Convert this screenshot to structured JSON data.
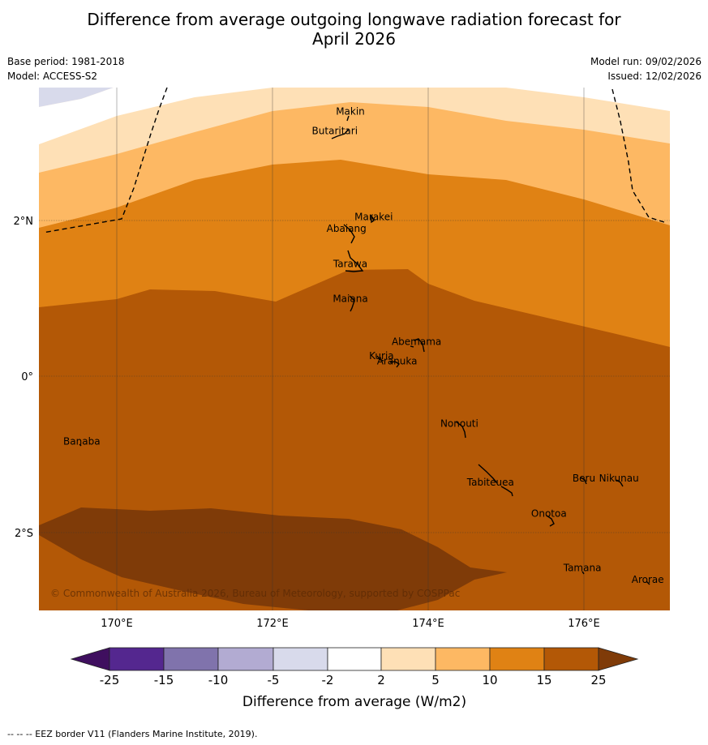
{
  "header": {
    "title_line1": "Difference from average outgoing longwave radiation forecast for",
    "title_line2": "April 2026",
    "base_period": "Base period: 1981-2018",
    "model": "Model: ACCESS-S2",
    "model_run": "Model run: 09/02/2026",
    "issued": "Issued: 12/02/2026"
  },
  "map": {
    "lon_ticks": [
      "170°E",
      "172°E",
      "174°E",
      "176°E"
    ],
    "lat_ticks": [
      "2°N",
      "0°",
      "2°S"
    ],
    "copyright": "© Commonwealth of Australia 2026, Bureau of Meteorology, supported by COSPPac",
    "islands": [
      {
        "name": "Makin",
        "lon": 173.0,
        "lat": 3.35
      },
      {
        "name": "Butaritari",
        "lon": 172.8,
        "lat": 3.1
      },
      {
        "name": "Marakei",
        "lon": 173.3,
        "lat": 2.0
      },
      {
        "name": "Abaiang",
        "lon": 172.95,
        "lat": 1.85
      },
      {
        "name": "Tarawa",
        "lon": 173.0,
        "lat": 1.4
      },
      {
        "name": "Maiana",
        "lon": 173.0,
        "lat": 0.95
      },
      {
        "name": "Abemama",
        "lon": 173.85,
        "lat": 0.4
      },
      {
        "name": "Kuria",
        "lon": 173.4,
        "lat": 0.22
      },
      {
        "name": "Aranuka",
        "lon": 173.6,
        "lat": 0.15
      },
      {
        "name": "Nonouti",
        "lon": 174.4,
        "lat": -0.65
      },
      {
        "name": "Banaba",
        "lon": 169.55,
        "lat": -0.88
      },
      {
        "name": "Tabiteuea",
        "lon": 174.8,
        "lat": -1.4
      },
      {
        "name": "Beru",
        "lon": 176.0,
        "lat": -1.35
      },
      {
        "name": "Nikunau",
        "lon": 176.45,
        "lat": -1.35
      },
      {
        "name": "Onotoa",
        "lon": 175.55,
        "lat": -1.8
      },
      {
        "name": "Tamana",
        "lon": 175.98,
        "lat": -2.5
      },
      {
        "name": "Arorae",
        "lon": 176.82,
        "lat": -2.65
      }
    ]
  },
  "legend": {
    "title": "Difference from average (W/m2)",
    "tick_labels": [
      "-25",
      "-15",
      "-10",
      "-5",
      "-2",
      "2",
      "5",
      "10",
      "15",
      "25"
    ],
    "colors": {
      "below_-25": "#3f0f5f",
      "-25_-15": "#54278f",
      "-15_-10": "#8073ac",
      "-10_-5": "#b2abd2",
      "-5_-2": "#d8daeb",
      "-2_2": "#ffffff",
      "2_5": "#fee0b6",
      "5_10": "#fdb863",
      "10_15": "#e08214",
      "15_25": "#b35806",
      "above_25": "#7f3b08"
    }
  },
  "footnote": "-- -- -- EEZ border V11 (Flanders Marine Institute, 2019)."
}
